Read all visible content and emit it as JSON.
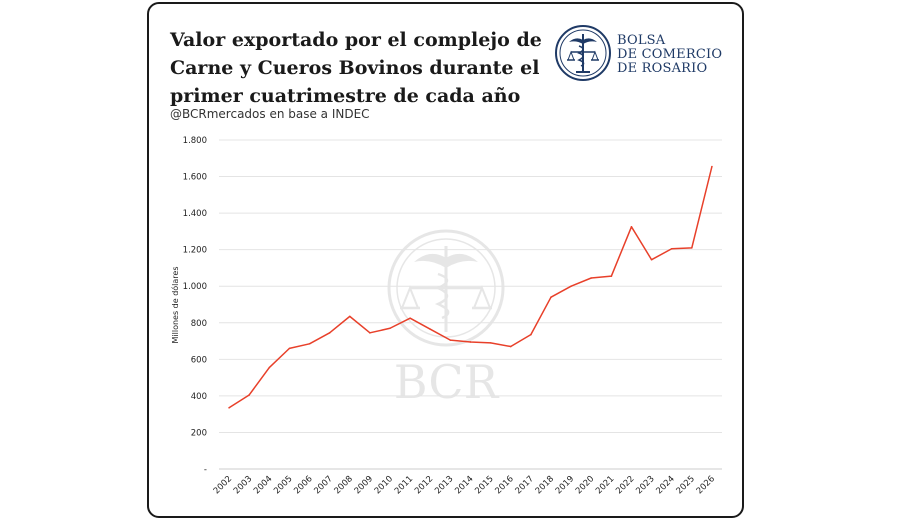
{
  "title_lines": [
    "Valor exportado por el complejo de",
    "Carne y Cueros Bovinos durante el",
    "primer cuatrimestre de cada año"
  ],
  "subtitle": "@BCRmercados en base a INDEC",
  "logo": {
    "lines": [
      "BOLSA",
      "DE COMERCIO",
      "DE ROSARIO"
    ],
    "icon": "caduceus-scales-seal-icon",
    "color": "#1f3a66"
  },
  "watermark": {
    "text": "BCR",
    "icon": "caduceus-scales-seal-icon"
  },
  "chart_data": {
    "type": "line",
    "title": "Valor exportado por el complejo de Carne y Cueros Bovinos durante el primer cuatrimestre de cada año",
    "xlabel": "",
    "ylabel": "Millones de dólares",
    "ylim": [
      0,
      1800
    ],
    "yticks": [
      0,
      200,
      400,
      600,
      800,
      1000,
      1200,
      1400,
      1600,
      1800
    ],
    "ytick_labels": [
      "-",
      "200",
      "400",
      "600",
      "800",
      "1.000",
      "1.200",
      "1.400",
      "1.600",
      "1.800"
    ],
    "grid": true,
    "line_color": "#e8402a",
    "categories": [
      "2002",
      "2003",
      "2004",
      "2005",
      "2006",
      "2007",
      "2008",
      "2009",
      "2010",
      "2011",
      "2012",
      "2013",
      "2014",
      "2015",
      "2016",
      "2017",
      "2018",
      "2019",
      "2020",
      "2021",
      "2022",
      "2023",
      "2024",
      "2025",
      "2026"
    ],
    "values": [
      335,
      405,
      555,
      660,
      685,
      745,
      835,
      745,
      770,
      825,
      765,
      705,
      695,
      690,
      670,
      735,
      940,
      1000,
      1045,
      1055,
      1325,
      1145,
      1205,
      1210,
      1655
    ]
  }
}
